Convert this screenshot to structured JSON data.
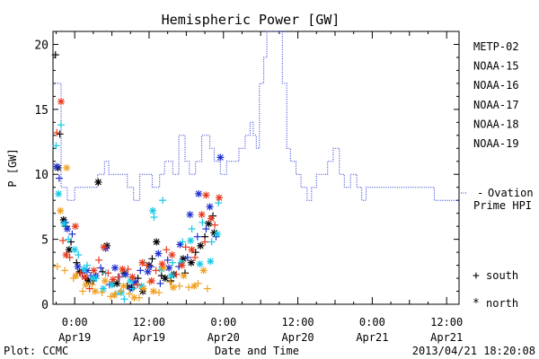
{
  "chart_data": {
    "type": "scatter",
    "title": "Hemispheric Power [GW]",
    "xlabel": "Date and Time",
    "ylabel": "P [GW]",
    "x_unit": "hours since 2013-04-19 00:00 UT",
    "xlim": [
      -3.5,
      62
    ],
    "ylim": [
      0,
      21
    ],
    "yticks": [
      0,
      5,
      10,
      15,
      20
    ],
    "xticks": [
      {
        "x": 0,
        "time": "0:00",
        "date": "Apr19"
      },
      {
        "x": 12,
        "time": "12:00",
        "date": "Apr19"
      },
      {
        "x": 24,
        "time": "0:00",
        "date": "Apr20"
      },
      {
        "x": 36,
        "time": "12:00",
        "date": "Apr20"
      },
      {
        "x": 48,
        "time": "0:00",
        "date": "Apr21"
      },
      {
        "x": 60,
        "time": "12:00",
        "date": "Apr21"
      }
    ],
    "footer_left": "Plot: CCMC",
    "footer_right": "2013/04/21 18:20:08",
    "legend": {
      "satellites": [
        {
          "name": "METP-02",
          "color": "#000000"
        },
        {
          "name": "NOAA-15",
          "color": "#1f2fd0"
        },
        {
          "name": "NOAA-16",
          "color": "#14c8e6"
        },
        {
          "name": "NOAA-17",
          "color": "#2fe08a"
        },
        {
          "name": "NOAA-18",
          "color": "#f0a020"
        },
        {
          "name": "NOAA-19",
          "color": "#e83a1c"
        }
      ],
      "ovation_line1": "Ovation",
      "ovation_line2": "Prime HPI",
      "ovation_color": "#1f2fd0",
      "south_symbol": "+",
      "south_label": "south",
      "north_symbol": "*",
      "north_label": "north"
    },
    "series": [
      {
        "name": "Ovation Prime HPI",
        "kind": "step",
        "x": [
          -3.5,
          -2.2,
          -1.2,
          0,
          2.5,
          3.7,
          4.8,
          5.5,
          6.8,
          7.8,
          8.5,
          9.5,
          10.5,
          11.5,
          12.5,
          13.7,
          14.5,
          15.8,
          16.8,
          17.8,
          18.5,
          19.5,
          20.5,
          21.8,
          22.5,
          23.5,
          24.5,
          25.5,
          26.5,
          27.5,
          28.3,
          28.8,
          29.3,
          29.8,
          30.5,
          31.0,
          31.5,
          32.3,
          33.5,
          34.2,
          34.8,
          35.7,
          36.5,
          37.5,
          38.2,
          39.0,
          40.0,
          40.8,
          41.7,
          42.7,
          43.5,
          44.5,
          45.5,
          46.3,
          47.0,
          48.2,
          50.5,
          52.0,
          54.0,
          56.0,
          58.0,
          60.5,
          62
        ],
        "y": [
          17,
          9,
          8,
          9,
          9,
          10,
          11,
          10,
          10,
          10,
          9,
          8,
          10,
          10,
          9,
          10,
          11,
          10,
          13,
          11,
          10,
          11,
          13,
          12,
          11,
          10,
          11,
          11,
          12,
          13,
          14,
          13,
          12,
          17,
          19,
          21,
          21,
          21,
          17,
          12,
          11,
          10,
          9,
          8,
          9,
          10,
          10,
          11,
          12,
          10,
          9,
          10,
          9,
          8,
          9,
          9,
          9,
          9,
          9,
          9,
          8,
          8,
          8
        ]
      },
      {
        "name": "METP-02",
        "color": "#000000",
        "south": [
          [
            -3.1,
            19.2
          ],
          [
            -2.4,
            13.1
          ],
          [
            -1.4,
            6.0
          ],
          [
            -0.6,
            4.8
          ],
          [
            0.3,
            3.2
          ],
          [
            1.8,
            2.0
          ],
          [
            3.0,
            1.8
          ],
          [
            4.5,
            2.5
          ],
          [
            6.2,
            1.6
          ],
          [
            8.5,
            1.4
          ],
          [
            10.2,
            2.0
          ],
          [
            12.5,
            3.5
          ],
          [
            14.0,
            2.2
          ],
          [
            15.5,
            1.8
          ],
          [
            17.8,
            2.4
          ],
          [
            19.5,
            4.0
          ],
          [
            21.0,
            5.2
          ],
          [
            22.3,
            6.8
          ]
        ],
        "north": [
          [
            -2.7,
            10.5
          ],
          [
            -1.8,
            6.5
          ],
          [
            -0.9,
            4.2
          ],
          [
            0.8,
            2.5
          ],
          [
            2.2,
            1.8
          ],
          [
            3.8,
            9.4
          ],
          [
            5.2,
            4.5
          ],
          [
            6.8,
            1.6
          ],
          [
            8.0,
            2.4
          ],
          [
            9.2,
            1.3
          ],
          [
            11.0,
            1.0
          ],
          [
            12.0,
            3.0
          ],
          [
            13.2,
            4.8
          ],
          [
            14.6,
            2.0
          ],
          [
            16.0,
            2.3
          ],
          [
            17.5,
            3.5
          ],
          [
            18.8,
            3.2
          ],
          [
            20.3,
            4.5
          ],
          [
            21.6,
            6.2
          ],
          [
            22.5,
            5.5
          ]
        ]
      },
      {
        "name": "NOAA-15",
        "color": "#1f2fd0",
        "south": [
          [
            -2.5,
            9.7
          ],
          [
            -1.5,
            6.3
          ],
          [
            -0.4,
            5.4
          ],
          [
            1.2,
            2.4
          ],
          [
            2.6,
            2.2
          ],
          [
            4.2,
            2.8
          ],
          [
            5.6,
            1.5
          ],
          [
            7.2,
            2.1
          ],
          [
            9.0,
            1.2
          ],
          [
            10.6,
            2.6
          ],
          [
            12.3,
            2.9
          ],
          [
            13.8,
            1.6
          ],
          [
            15.0,
            3.4
          ],
          [
            16.8,
            2.9
          ],
          [
            18.2,
            3.6
          ],
          [
            19.8,
            5.2
          ],
          [
            21.2,
            5.8
          ],
          [
            22.8,
            5.2
          ]
        ],
        "north": [
          [
            -2.9,
            10.6
          ],
          [
            -1.2,
            5.8
          ],
          [
            0.5,
            2.9
          ],
          [
            2.0,
            2.6
          ],
          [
            3.4,
            2.2
          ],
          [
            5.0,
            4.3
          ],
          [
            6.5,
            2.8
          ],
          [
            8.2,
            2.3
          ],
          [
            9.8,
            1.7
          ],
          [
            11.8,
            2.5
          ],
          [
            13.5,
            3.9
          ],
          [
            15.2,
            2.8
          ],
          [
            17.0,
            4.6
          ],
          [
            18.6,
            6.9
          ],
          [
            20.0,
            8.5
          ],
          [
            21.8,
            7.5
          ],
          [
            23.5,
            11.3
          ]
        ]
      },
      {
        "name": "NOAA-16",
        "color": "#14c8e6",
        "south": [
          [
            -3.0,
            12.2
          ],
          [
            -2.2,
            13.8
          ],
          [
            -1.0,
            5.0
          ],
          [
            0.6,
            3.8
          ],
          [
            2.0,
            3.0
          ],
          [
            3.5,
            2.0
          ],
          [
            5.0,
            2.4
          ],
          [
            6.6,
            0.8
          ],
          [
            8.0,
            0.4
          ],
          [
            9.4,
            1.2
          ],
          [
            11.2,
            3.2
          ],
          [
            12.8,
            6.7
          ],
          [
            14.2,
            8.0
          ],
          [
            15.8,
            3.2
          ],
          [
            17.4,
            4.8
          ],
          [
            18.9,
            5.8
          ],
          [
            20.6,
            6.3
          ],
          [
            22.1,
            4.8
          ],
          [
            23.2,
            7.8
          ]
        ],
        "north": [
          [
            -2.6,
            8.5
          ],
          [
            -1.7,
            6.2
          ],
          [
            0.0,
            4.2
          ],
          [
            1.5,
            2.7
          ],
          [
            3.0,
            2.0
          ],
          [
            4.6,
            1.2
          ],
          [
            6.0,
            1.5
          ],
          [
            7.5,
            0.9
          ],
          [
            9.0,
            1.8
          ],
          [
            10.8,
            1.4
          ],
          [
            12.6,
            7.2
          ],
          [
            14.0,
            2.7
          ],
          [
            15.6,
            2.2
          ],
          [
            17.2,
            3.2
          ],
          [
            18.7,
            4.9
          ],
          [
            20.2,
            3.1
          ],
          [
            21.9,
            3.3
          ],
          [
            23.0,
            5.4
          ]
        ]
      },
      {
        "name": "NOAA-18",
        "color": "#f0a020",
        "south": [
          [
            -2.8,
            2.9
          ],
          [
            -1.6,
            2.6
          ],
          [
            -0.2,
            2.0
          ],
          [
            1.3,
            1.0
          ],
          [
            2.8,
            1.5
          ],
          [
            4.4,
            0.9
          ],
          [
            5.8,
            0.6
          ],
          [
            7.4,
            1.0
          ],
          [
            8.8,
            0.8
          ],
          [
            10.4,
            0.5
          ],
          [
            12.1,
            1.7
          ],
          [
            13.6,
            0.9
          ],
          [
            15.4,
            1.7
          ],
          [
            16.9,
            1.4
          ],
          [
            18.4,
            1.3
          ],
          [
            19.9,
            1.6
          ],
          [
            21.4,
            1.2
          ]
        ],
        "north": [
          [
            -2.3,
            7.2
          ],
          [
            -1.3,
            10.5
          ],
          [
            0.2,
            2.2
          ],
          [
            1.8,
            1.5
          ],
          [
            3.3,
            1.0
          ],
          [
            4.9,
            1.8
          ],
          [
            6.4,
            0.7
          ],
          [
            7.9,
            1.4
          ],
          [
            9.6,
            0.5
          ],
          [
            11.1,
            1.2
          ],
          [
            12.7,
            1.0
          ],
          [
            14.3,
            2.8
          ],
          [
            15.9,
            1.3
          ],
          [
            17.6,
            2.2
          ],
          [
            19.3,
            1.4
          ],
          [
            20.8,
            2.6
          ]
        ]
      },
      {
        "name": "NOAA-19",
        "color": "#e83a1c",
        "south": [
          [
            -2.9,
            13.2
          ],
          [
            -1.9,
            4.9
          ],
          [
            -0.8,
            3.6
          ],
          [
            0.9,
            2.4
          ],
          [
            2.4,
            1.2
          ],
          [
            3.9,
            3.4
          ],
          [
            5.4,
            2.4
          ],
          [
            7.0,
            2.1
          ],
          [
            8.6,
            2.7
          ],
          [
            10.1,
            1.5
          ],
          [
            11.6,
            3.0
          ],
          [
            13.1,
            2.6
          ],
          [
            14.8,
            4.2
          ],
          [
            16.4,
            2.3
          ],
          [
            17.9,
            4.4
          ],
          [
            19.4,
            3.6
          ],
          [
            21.0,
            4.8
          ],
          [
            22.6,
            6.1
          ]
        ],
        "north": [
          [
            -2.2,
            15.6
          ],
          [
            -1.4,
            3.8
          ],
          [
            0.1,
            6.0
          ],
          [
            1.6,
            2.1
          ],
          [
            3.1,
            2.6
          ],
          [
            4.7,
            4.4
          ],
          [
            6.2,
            1.9
          ],
          [
            7.7,
            2.7
          ],
          [
            9.3,
            2.1
          ],
          [
            10.9,
            3.2
          ],
          [
            12.4,
            1.8
          ],
          [
            14.1,
            3.1
          ],
          [
            15.7,
            3.8
          ],
          [
            17.3,
            3.0
          ],
          [
            18.9,
            4.2
          ],
          [
            20.5,
            6.9
          ],
          [
            22.0,
            6.6
          ],
          [
            23.3,
            8.2
          ],
          [
            21.2,
            8.4
          ]
        ]
      }
    ]
  }
}
